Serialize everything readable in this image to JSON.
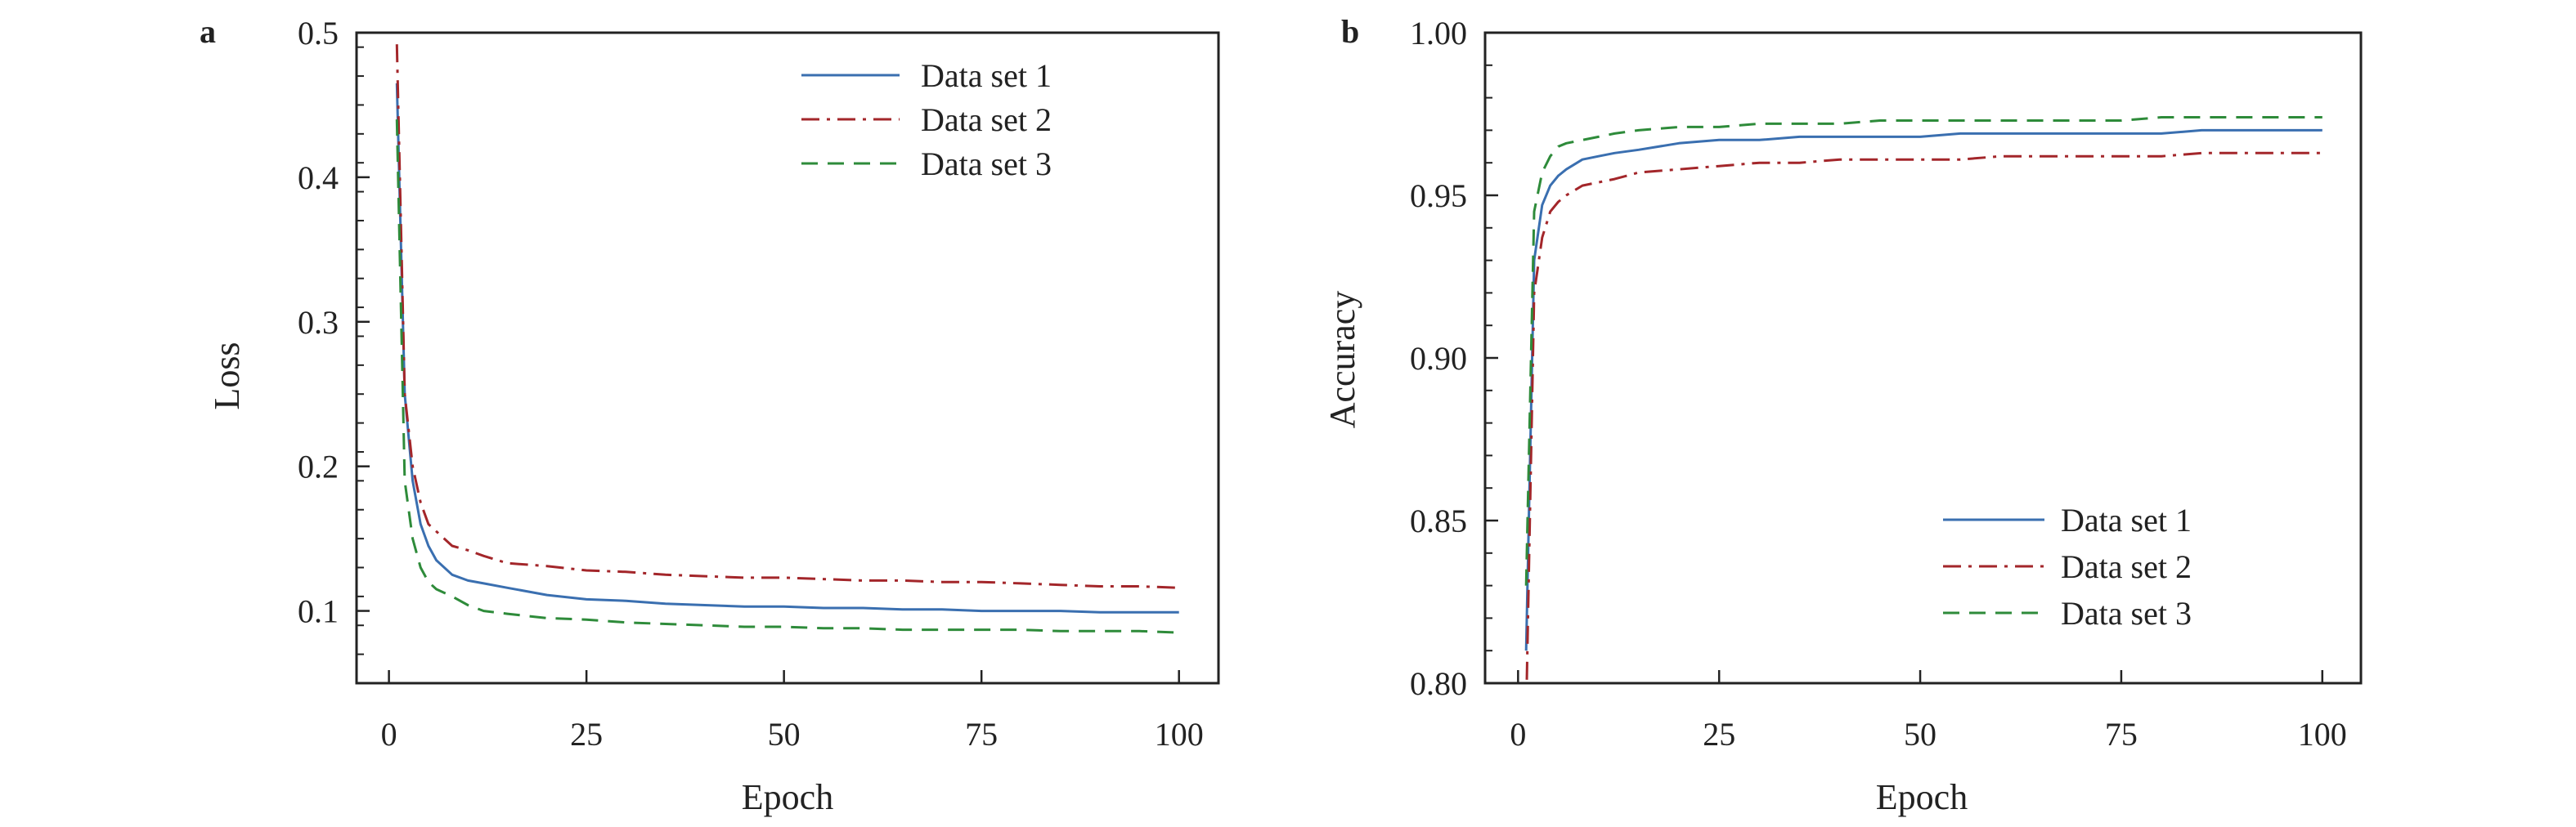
{
  "colors": {
    "series1": "#3a6fb0",
    "series2": "#a3262a",
    "series3": "#2e8b3a",
    "axes": "#222222"
  },
  "chart_data": [
    {
      "type": "line",
      "panel_label": "a",
      "xlabel": "Epoch",
      "ylabel": "Loss",
      "xlim": [
        -4.1,
        105
      ],
      "ylim": [
        0.05,
        0.5
      ],
      "xticks": [
        0,
        25,
        50,
        75,
        100
      ],
      "xtick_labels": [
        "0",
        "25",
        "50",
        "75",
        "100"
      ],
      "yticks": [
        0.1,
        0.2,
        0.3,
        0.4,
        0.5
      ],
      "ytick_labels": [
        "0.1",
        "0.2",
        "0.3",
        "0.4",
        "0.5"
      ],
      "yminor_step": 0.02,
      "grid": false,
      "legend_position": "top-right",
      "x": [
        1,
        2,
        3,
        4,
        5,
        6,
        8,
        10,
        12,
        15,
        20,
        25,
        30,
        35,
        40,
        45,
        50,
        55,
        60,
        65,
        70,
        75,
        80,
        85,
        90,
        95,
        100
      ],
      "series": [
        {
          "name": "Data set 1",
          "style": "solid",
          "values": [
            0.465,
            0.25,
            0.19,
            0.16,
            0.145,
            0.135,
            0.125,
            0.121,
            0.119,
            0.116,
            0.111,
            0.108,
            0.107,
            0.105,
            0.104,
            0.103,
            0.103,
            0.102,
            0.102,
            0.101,
            0.101,
            0.1,
            0.1,
            0.1,
            0.099,
            0.099,
            0.099
          ]
        },
        {
          "name": "Data set 2",
          "style": "dashdot",
          "values": [
            0.492,
            0.25,
            0.2,
            0.175,
            0.16,
            0.155,
            0.145,
            0.142,
            0.138,
            0.133,
            0.131,
            0.128,
            0.127,
            0.125,
            0.124,
            0.123,
            0.123,
            0.122,
            0.121,
            0.121,
            0.12,
            0.12,
            0.119,
            0.118,
            0.117,
            0.117,
            0.116
          ]
        },
        {
          "name": "Data set 3",
          "style": "dashed",
          "values": [
            0.44,
            0.19,
            0.15,
            0.13,
            0.12,
            0.115,
            0.11,
            0.104,
            0.1,
            0.098,
            0.095,
            0.094,
            0.092,
            0.091,
            0.09,
            0.089,
            0.089,
            0.088,
            0.088,
            0.087,
            0.087,
            0.087,
            0.087,
            0.086,
            0.086,
            0.086,
            0.085
          ]
        }
      ]
    },
    {
      "type": "line",
      "panel_label": "b",
      "xlabel": "Epoch",
      "ylabel": "Accuracy",
      "xlim": [
        -4.1,
        104.8
      ],
      "ylim": [
        0.8,
        1.0
      ],
      "xticks": [
        0,
        25,
        50,
        75,
        100
      ],
      "xtick_labels": [
        "0",
        "25",
        "50",
        "75",
        "100"
      ],
      "yticks": [
        0.8,
        0.85,
        0.9,
        0.95,
        1.0
      ],
      "ytick_labels": [
        "0.80",
        "0.85",
        "0.90",
        "0.95",
        "1.00"
      ],
      "yminor_step": 0.01,
      "grid": false,
      "legend_position": "lower-right",
      "x": [
        1,
        2,
        3,
        4,
        5,
        6,
        8,
        10,
        12,
        15,
        20,
        25,
        30,
        35,
        40,
        45,
        50,
        55,
        60,
        65,
        70,
        75,
        80,
        85,
        90,
        95,
        100
      ],
      "series": [
        {
          "name": "Data set 1",
          "style": "solid",
          "values": [
            0.81,
            0.93,
            0.947,
            0.953,
            0.956,
            0.958,
            0.961,
            0.962,
            0.963,
            0.964,
            0.966,
            0.967,
            0.967,
            0.968,
            0.968,
            0.968,
            0.968,
            0.969,
            0.969,
            0.969,
            0.969,
            0.969,
            0.969,
            0.97,
            0.97,
            0.97,
            0.97
          ]
        },
        {
          "name": "Data set 2",
          "style": "dashdot",
          "values": [
            0.79,
            0.92,
            0.937,
            0.945,
            0.948,
            0.95,
            0.953,
            0.954,
            0.955,
            0.957,
            0.958,
            0.959,
            0.96,
            0.96,
            0.961,
            0.961,
            0.961,
            0.961,
            0.962,
            0.962,
            0.962,
            0.962,
            0.962,
            0.963,
            0.963,
            0.963,
            0.963
          ]
        },
        {
          "name": "Data set 3",
          "style": "dashed",
          "values": [
            0.83,
            0.945,
            0.957,
            0.962,
            0.965,
            0.966,
            0.967,
            0.968,
            0.969,
            0.97,
            0.971,
            0.971,
            0.972,
            0.972,
            0.972,
            0.973,
            0.973,
            0.973,
            0.973,
            0.973,
            0.973,
            0.973,
            0.974,
            0.974,
            0.974,
            0.974,
            0.974
          ]
        }
      ]
    }
  ]
}
